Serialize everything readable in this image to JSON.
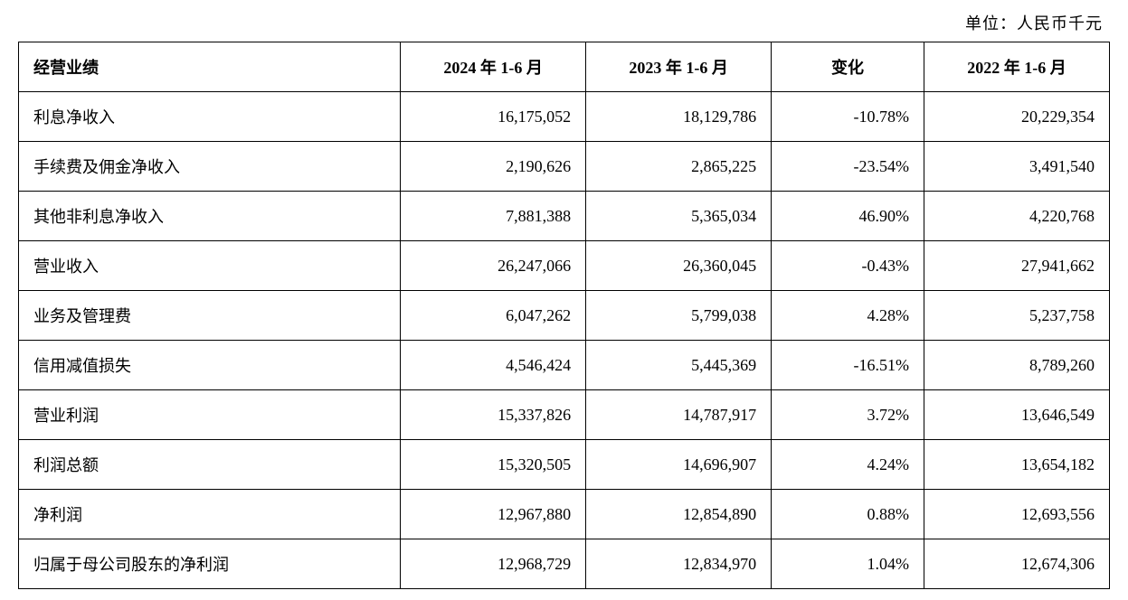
{
  "unit_label": "单位：人民币千元",
  "table": {
    "columns": [
      {
        "label": "经营业绩",
        "align": "left"
      },
      {
        "label": "2024 年 1-6 月",
        "align": "right"
      },
      {
        "label": "2023 年 1-6 月",
        "align": "right"
      },
      {
        "label": "变化",
        "align": "right"
      },
      {
        "label": "2022 年 1-6 月",
        "align": "right"
      }
    ],
    "rows": [
      {
        "label": "利息净收入",
        "y2024": "16,175,052",
        "y2023": "18,129,786",
        "change": "-10.78%",
        "y2022": "20,229,354"
      },
      {
        "label": "手续费及佣金净收入",
        "y2024": "2,190,626",
        "y2023": "2,865,225",
        "change": "-23.54%",
        "y2022": "3,491,540"
      },
      {
        "label": "其他非利息净收入",
        "y2024": "7,881,388",
        "y2023": "5,365,034",
        "change": "46.90%",
        "y2022": "4,220,768"
      },
      {
        "label": "营业收入",
        "y2024": "26,247,066",
        "y2023": "26,360,045",
        "change": "-0.43%",
        "y2022": "27,941,662"
      },
      {
        "label": "业务及管理费",
        "y2024": "6,047,262",
        "y2023": "5,799,038",
        "change": "4.28%",
        "y2022": "5,237,758"
      },
      {
        "label": "信用减值损失",
        "y2024": "4,546,424",
        "y2023": "5,445,369",
        "change": "-16.51%",
        "y2022": "8,789,260"
      },
      {
        "label": "营业利润",
        "y2024": "15,337,826",
        "y2023": "14,787,917",
        "change": "3.72%",
        "y2022": "13,646,549"
      },
      {
        "label": "利润总额",
        "y2024": "15,320,505",
        "y2023": "14,696,907",
        "change": "4.24%",
        "y2022": "13,654,182"
      },
      {
        "label": "净利润",
        "y2024": "12,967,880",
        "y2023": "12,854,890",
        "change": "0.88%",
        "y2022": "12,693,556"
      },
      {
        "label": "归属于母公司股东的净利润",
        "y2024": "12,968,729",
        "y2023": "12,834,970",
        "change": "1.04%",
        "y2022": "12,674,306"
      }
    ],
    "styling": {
      "border_color": "#000000",
      "border_width": 1.5,
      "background_color": "#ffffff",
      "text_color": "#000000",
      "header_font_weight": "bold",
      "font_size_pt": 18,
      "cell_padding_v": 14,
      "cell_padding_h": 12,
      "column_widths_pct": [
        35,
        17,
        17,
        14,
        17
      ],
      "numeric_align": "right",
      "label_align": "left",
      "header_align": "center"
    }
  }
}
